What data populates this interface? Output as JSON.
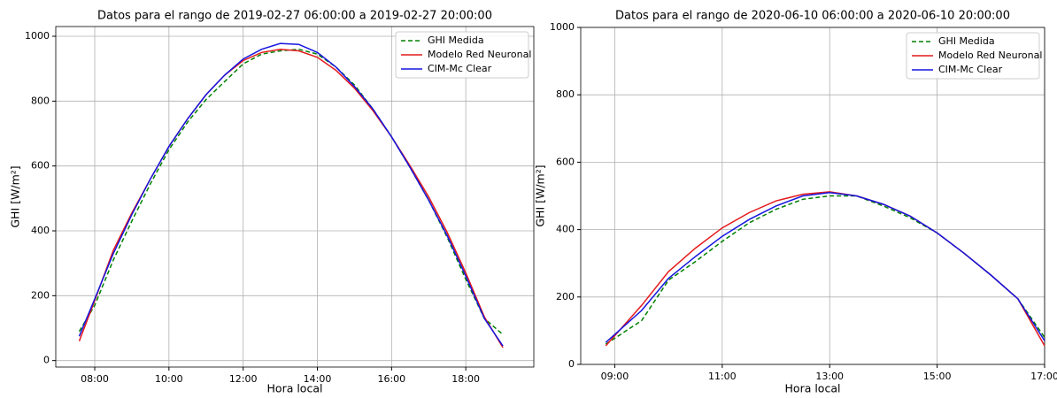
{
  "chart_data": [
    {
      "type": "line",
      "title": "Datos para el rango de 2019-02-27 06:00:00 a 2019-02-27 20:00:00",
      "xlabel": "Hora local",
      "ylabel": "GHI [W/m²]",
      "x": [
        "07:35",
        "08:00",
        "08:30",
        "09:00",
        "09:30",
        "10:00",
        "10:30",
        "11:00",
        "11:30",
        "12:00",
        "12:30",
        "13:00",
        "13:30",
        "14:00",
        "14:30",
        "15:00",
        "15:30",
        "16:00",
        "16:30",
        "17:00",
        "17:30",
        "18:00",
        "18:30",
        "19:00"
      ],
      "series": [
        {
          "name": "GHI Medida",
          "color": "#008000",
          "dashed": true,
          "values": [
            90,
            170,
            310,
            430,
            545,
            650,
            735,
            805,
            860,
            915,
            945,
            955,
            960,
            945,
            905,
            850,
            775,
            690,
            595,
            495,
            380,
            250,
            130,
            80
          ]
        },
        {
          "name": "Modelo Red Neuronal",
          "color": "#e41a1c",
          "dashed": false,
          "values": [
            60,
            185,
            340,
            455,
            560,
            660,
            745,
            820,
            880,
            925,
            950,
            960,
            955,
            935,
            895,
            840,
            770,
            690,
            600,
            505,
            395,
            270,
            135,
            40
          ]
        },
        {
          "name": "CIM-Mc Clear",
          "color": "#1515e0",
          "dashed": false,
          "values": [
            75,
            190,
            330,
            450,
            560,
            660,
            745,
            820,
            880,
            930,
            960,
            978,
            975,
            950,
            905,
            845,
            775,
            690,
            595,
            495,
            385,
            260,
            130,
            45
          ]
        }
      ],
      "xlim": [
        "06:57",
        "19:50"
      ],
      "xticks": [
        "08:00",
        "10:00",
        "12:00",
        "14:00",
        "16:00",
        "18:00"
      ],
      "ylim": [
        -20,
        1030
      ],
      "yticks": [
        0,
        200,
        400,
        600,
        800,
        1000
      ],
      "grid": true,
      "legend": "upper right"
    },
    {
      "type": "line",
      "title": "Datos para el rango de 2020-06-10 06:00:00 a 2020-06-10 20:00:00",
      "xlabel": "Hora local",
      "ylabel": "GHI [W/m²]",
      "x": [
        "08:50",
        "09:30",
        "10:00",
        "10:30",
        "11:00",
        "11:30",
        "12:00",
        "12:30",
        "13:00",
        "13:30",
        "14:00",
        "14:30",
        "15:00",
        "15:30",
        "16:00",
        "16:30",
        "17:00"
      ],
      "series": [
        {
          "name": "GHI Medida",
          "color": "#008000",
          "dashed": true,
          "values": [
            60,
            130,
            250,
            305,
            365,
            420,
            460,
            490,
            500,
            500,
            470,
            435,
            390,
            330,
            265,
            195,
            80
          ]
        },
        {
          "name": "Modelo Red Neuronal",
          "color": "#e41a1c",
          "dashed": false,
          "values": [
            55,
            175,
            275,
            345,
            405,
            450,
            485,
            505,
            512,
            500,
            475,
            440,
            390,
            330,
            265,
            195,
            55
          ]
        },
        {
          "name": "CIM-Mc Clear",
          "color": "#1515e0",
          "dashed": false,
          "values": [
            65,
            160,
            255,
            320,
            380,
            430,
            470,
            500,
            510,
            500,
            475,
            440,
            390,
            330,
            265,
            195,
            70
          ]
        }
      ],
      "xlim": [
        "08:22",
        "17:00"
      ],
      "xticks": [
        "09:00",
        "11:00",
        "13:00",
        "15:00",
        "17:00"
      ],
      "ylim": [
        0,
        1000
      ],
      "yticks": [
        0,
        200,
        400,
        600,
        800,
        1000
      ],
      "grid": true,
      "legend": "upper right"
    }
  ]
}
